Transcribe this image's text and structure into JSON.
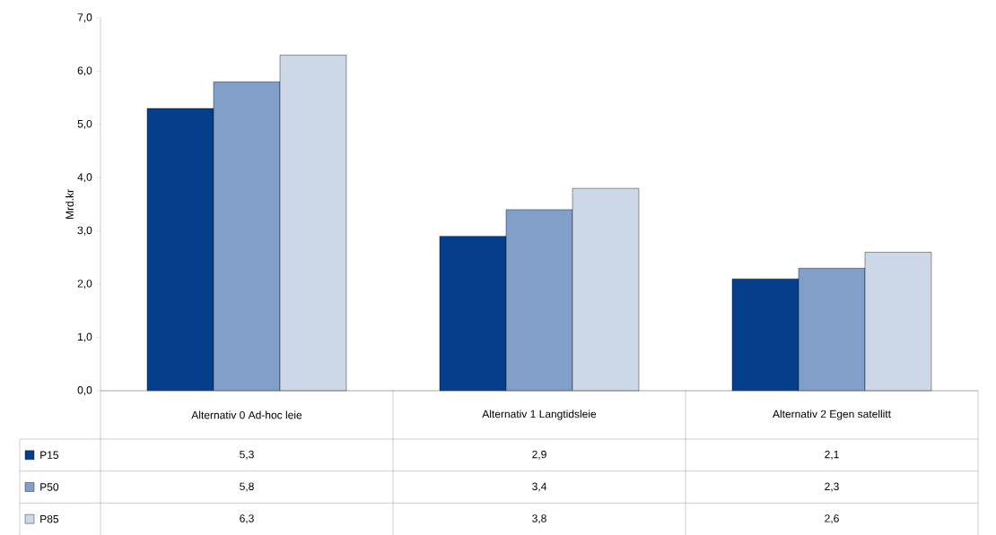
{
  "chart_data": {
    "type": "bar",
    "ylabel": "Mrd.kr",
    "categories": [
      "Alternativ 0 Ad-hoc leie",
      "Alternativ 1 Langtidsleie",
      "Alternativ 2 Egen satellitt"
    ],
    "series": [
      {
        "name": "P15",
        "color": "#053f8c",
        "values": [
          5.3,
          2.9,
          2.1
        ],
        "value_labels": [
          "5,3",
          "2,9",
          "2,1"
        ]
      },
      {
        "name": "P50",
        "color": "#819fc8",
        "values": [
          5.8,
          3.4,
          2.3
        ],
        "value_labels": [
          "5,8",
          "3,4",
          "2,3"
        ]
      },
      {
        "name": "P85",
        "color": "#ccd8e8",
        "values": [
          6.3,
          3.8,
          2.6
        ],
        "value_labels": [
          "6,3",
          "3,8",
          "2,6"
        ]
      }
    ],
    "ylim": [
      0,
      7
    ],
    "yticks": [
      {
        "value": 0,
        "label": "0,0"
      },
      {
        "value": 1,
        "label": "1,0"
      },
      {
        "value": 2,
        "label": "2,0"
      },
      {
        "value": 3,
        "label": "3,0"
      },
      {
        "value": 4,
        "label": "4,0"
      },
      {
        "value": 5,
        "label": "5,0"
      },
      {
        "value": 6,
        "label": "6,0"
      },
      {
        "value": 7,
        "label": "7,0"
      }
    ],
    "grid": false,
    "legend": "bottom"
  }
}
